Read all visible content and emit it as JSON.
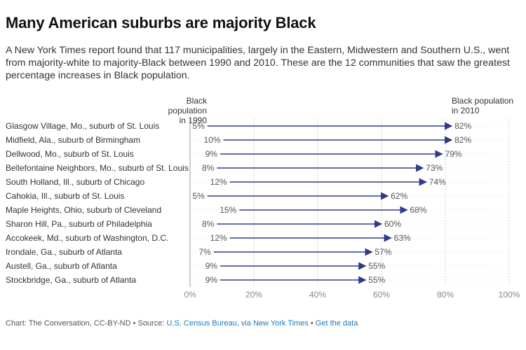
{
  "header": {
    "title": "Many American suburbs are majority Black",
    "subtitle": "A New York Times report found that 117 municipalities, largely in the Eastern, Midwestern and Southern U.S., went from majority-white to majority-Black between 1990 and 2010. These are the 12 communities that saw the greatest percentage increases in Black population."
  },
  "columns": {
    "left_line1": "Black population",
    "left_line2": "in 1990",
    "right_line1": "Black population",
    "right_line2": "in 2010"
  },
  "footer": {
    "prefix": "Chart: The Conversation, CC-BY-ND • Source: ",
    "source": "U.S. Census Bureau, via New York Times",
    "sep": " • ",
    "get_data": "Get the data"
  },
  "colors": {
    "arrow": "#2e3a8c",
    "grid": "#cccccc",
    "link": "#1a7bc0"
  },
  "chart_data": {
    "type": "arrow",
    "xlim": [
      0,
      100
    ],
    "x_ticks": [
      "0%",
      "20%",
      "40%",
      "60%",
      "80%",
      "100%"
    ],
    "series": [
      {
        "name": "Black population in 1990",
        "values": [
          5,
          10,
          9,
          8,
          12,
          5,
          15,
          8,
          12,
          7,
          9,
          9
        ]
      },
      {
        "name": "Black population in 2010",
        "values": [
          82,
          82,
          79,
          73,
          74,
          62,
          68,
          60,
          63,
          57,
          55,
          55
        ]
      }
    ],
    "categories": [
      "Glasgow Village, Mo., suburb of St. Louis",
      "Midfield, Ala., suburb of Birmingham",
      "Dellwood, Mo., suburb of St. Louis",
      "Bellefontaine Neighbors, Mo., suburb of St. Louis",
      "South Holland, Ill., suburb of Chicago",
      "Cahokia, Ill., suburb of St. Louis",
      "Maple Heights, Ohio, suburb of Cleveland",
      "Sharon Hill, Pa., suburb of Philadelphia",
      "Accokeek, Md., suburb of Washington, D.C.",
      "Irondale, Ga., suburb of Atlanta",
      "Austell, Ga., suburb of Atlanta",
      "Stockbridge, Ga., suburb of Atlanta"
    ],
    "grid": true
  }
}
